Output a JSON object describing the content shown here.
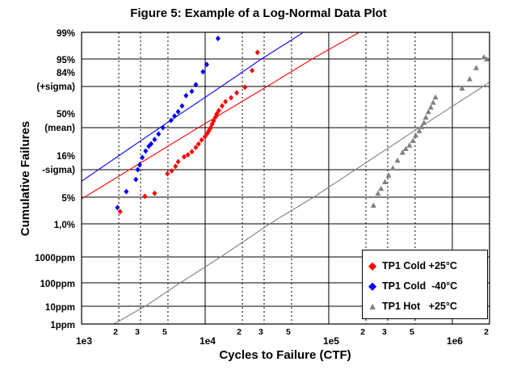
{
  "chart_data": {
    "type": "scatter",
    "title": "Figure 5:  Example of a Log-Normal Data Plot",
    "xlabel": "Cycles to Failure (CTF)",
    "ylabel": "Cumulative Failures",
    "x_scale": "log",
    "y_scale": "log-normal probability",
    "xlim": [
      1000,
      2000000
    ],
    "x_ticks": [
      {
        "value": 1000,
        "label": "1e3"
      },
      {
        "value": 2000,
        "label": "2"
      },
      {
        "value": 3000,
        "label": "3"
      },
      {
        "value": 5000,
        "label": "5"
      },
      {
        "value": 10000,
        "label": "1e4"
      },
      {
        "value": 20000,
        "label": "2"
      },
      {
        "value": 30000,
        "label": "3"
      },
      {
        "value": 50000,
        "label": "5"
      },
      {
        "value": 100000,
        "label": "1e5"
      },
      {
        "value": 200000,
        "label": "2"
      },
      {
        "value": 300000,
        "label": "3"
      },
      {
        "value": 500000,
        "label": "5"
      },
      {
        "value": 1000000,
        "label": "1e6"
      },
      {
        "value": 2000000,
        "label": "2"
      }
    ],
    "y_ticks": [
      {
        "p": 1e-06,
        "label": "1ppm"
      },
      {
        "p": 1e-05,
        "label": "10ppm"
      },
      {
        "p": 0.0001,
        "label": "100ppm"
      },
      {
        "p": 0.001,
        "label": "1000ppm"
      },
      {
        "p": 0.01,
        "label": "1,0%"
      },
      {
        "p": 0.05,
        "label": "5%"
      },
      {
        "p": 0.16,
        "label": "16%",
        "sublabel": "-sigma)"
      },
      {
        "p": 0.5,
        "label": "50%",
        "sublabel": "(mean)"
      },
      {
        "p": 0.84,
        "label": "84%",
        "sublabel": "(+sigma)"
      },
      {
        "p": 0.95,
        "label": "95%"
      },
      {
        "p": 0.99,
        "label": "99%"
      }
    ],
    "legend_position": "bottom-right",
    "series": [
      {
        "name": "TP1 Cold +25°C",
        "color": "#ff0000",
        "marker": "diamond",
        "fit_line": {
          "median": 8800,
          "sigma": 0.56
        },
        "points": [
          {
            "x": 2050,
            "y": 0.022
          },
          {
            "x": 3250,
            "y": 0.052
          },
          {
            "x": 3900,
            "y": 0.06
          },
          {
            "x": 4950,
            "y": 0.138
          },
          {
            "x": 5350,
            "y": 0.153
          },
          {
            "x": 5750,
            "y": 0.18
          },
          {
            "x": 6050,
            "y": 0.21
          },
          {
            "x": 6750,
            "y": 0.245
          },
          {
            "x": 7250,
            "y": 0.26
          },
          {
            "x": 7800,
            "y": 0.285
          },
          {
            "x": 8400,
            "y": 0.32
          },
          {
            "x": 8850,
            "y": 0.35
          },
          {
            "x": 9350,
            "y": 0.385
          },
          {
            "x": 9950,
            "y": 0.415
          },
          {
            "x": 10400,
            "y": 0.445
          },
          {
            "x": 10700,
            "y": 0.47
          },
          {
            "x": 11100,
            "y": 0.5
          },
          {
            "x": 11400,
            "y": 0.535
          },
          {
            "x": 11700,
            "y": 0.565
          },
          {
            "x": 12100,
            "y": 0.6
          },
          {
            "x": 12400,
            "y": 0.63
          },
          {
            "x": 12900,
            "y": 0.66
          },
          {
            "x": 13700,
            "y": 0.7
          },
          {
            "x": 14600,
            "y": 0.735
          },
          {
            "x": 16200,
            "y": 0.765
          },
          {
            "x": 18000,
            "y": 0.8
          },
          {
            "x": 21000,
            "y": 0.835
          },
          {
            "x": 24000,
            "y": 0.915
          },
          {
            "x": 26500,
            "y": 0.965
          }
        ]
      },
      {
        "name": "TP1 Cold  -40°C",
        "color": "#0000ff",
        "marker": "diamond",
        "fit_line": {
          "median": 4300,
          "sigma": 0.5
        },
        "points": [
          {
            "x": 1950,
            "y": 0.028
          },
          {
            "x": 2300,
            "y": 0.065
          },
          {
            "x": 2750,
            "y": 0.11
          },
          {
            "x": 2850,
            "y": 0.16
          },
          {
            "x": 2950,
            "y": 0.19
          },
          {
            "x": 3100,
            "y": 0.24
          },
          {
            "x": 3300,
            "y": 0.29
          },
          {
            "x": 3500,
            "y": 0.33
          },
          {
            "x": 3650,
            "y": 0.35
          },
          {
            "x": 3900,
            "y": 0.39
          },
          {
            "x": 4200,
            "y": 0.44
          },
          {
            "x": 4550,
            "y": 0.5
          },
          {
            "x": 5300,
            "y": 0.57
          },
          {
            "x": 5650,
            "y": 0.61
          },
          {
            "x": 6050,
            "y": 0.65
          },
          {
            "x": 6500,
            "y": 0.7
          },
          {
            "x": 7000,
            "y": 0.78
          },
          {
            "x": 7800,
            "y": 0.81
          },
          {
            "x": 8400,
            "y": 0.85
          },
          {
            "x": 9600,
            "y": 0.91
          },
          {
            "x": 10300,
            "y": 0.935
          },
          {
            "x": 12700,
            "y": 0.985
          }
        ]
      },
      {
        "name": "TP1 Hot   +25°C",
        "color": "#808080",
        "marker": "triangle",
        "fit_line": {
          "median": 540000,
          "sigma": 0.52
        },
        "points": [
          {
            "x": 230000,
            "y": 0.032
          },
          {
            "x": 250000,
            "y": 0.06
          },
          {
            "x": 265000,
            "y": 0.075
          },
          {
            "x": 285000,
            "y": 0.1
          },
          {
            "x": 305000,
            "y": 0.13
          },
          {
            "x": 330000,
            "y": 0.17
          },
          {
            "x": 360000,
            "y": 0.22
          },
          {
            "x": 395000,
            "y": 0.28
          },
          {
            "x": 420000,
            "y": 0.31
          },
          {
            "x": 450000,
            "y": 0.34
          },
          {
            "x": 480000,
            "y": 0.38
          },
          {
            "x": 505000,
            "y": 0.43
          },
          {
            "x": 540000,
            "y": 0.47
          },
          {
            "x": 565000,
            "y": 0.51
          },
          {
            "x": 590000,
            "y": 0.55
          },
          {
            "x": 610000,
            "y": 0.6
          },
          {
            "x": 640000,
            "y": 0.65
          },
          {
            "x": 670000,
            "y": 0.69
          },
          {
            "x": 700000,
            "y": 0.73
          },
          {
            "x": 730000,
            "y": 0.77
          },
          {
            "x": 1200000,
            "y": 0.83
          },
          {
            "x": 1380000,
            "y": 0.88
          },
          {
            "x": 1560000,
            "y": 0.925
          },
          {
            "x": 1800000,
            "y": 0.955
          },
          {
            "x": 1900000,
            "y": 0.95
          }
        ]
      }
    ]
  }
}
